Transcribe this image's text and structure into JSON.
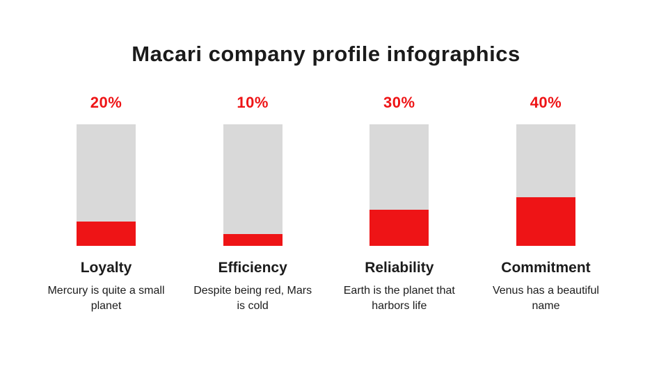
{
  "title": "Macari company profile infographics",
  "colors": {
    "accent_red": "#ee1416",
    "bar_background": "#d9d9d9",
    "text": "#1b1b1b",
    "page_background": "#ffffff"
  },
  "chart_data": {
    "type": "bar",
    "orientation": "vertical",
    "title": "Macari company profile infographics",
    "categories": [
      "Loyalty",
      "Efficiency",
      "Reliability",
      "Commitment"
    ],
    "values": [
      20,
      10,
      30,
      40
    ],
    "value_labels": [
      "20%",
      "10%",
      "30%",
      "40%"
    ],
    "descriptions": [
      "Mercury is quite a small planet",
      "Despite being red, Mars is cold",
      "Earth is the planet that harbors life",
      "Venus has a beautiful name"
    ],
    "ylim": [
      0,
      100
    ],
    "grid": false,
    "legend": "none",
    "bar_fill_color": "#ee1416",
    "bar_track_color": "#d9d9d9"
  }
}
